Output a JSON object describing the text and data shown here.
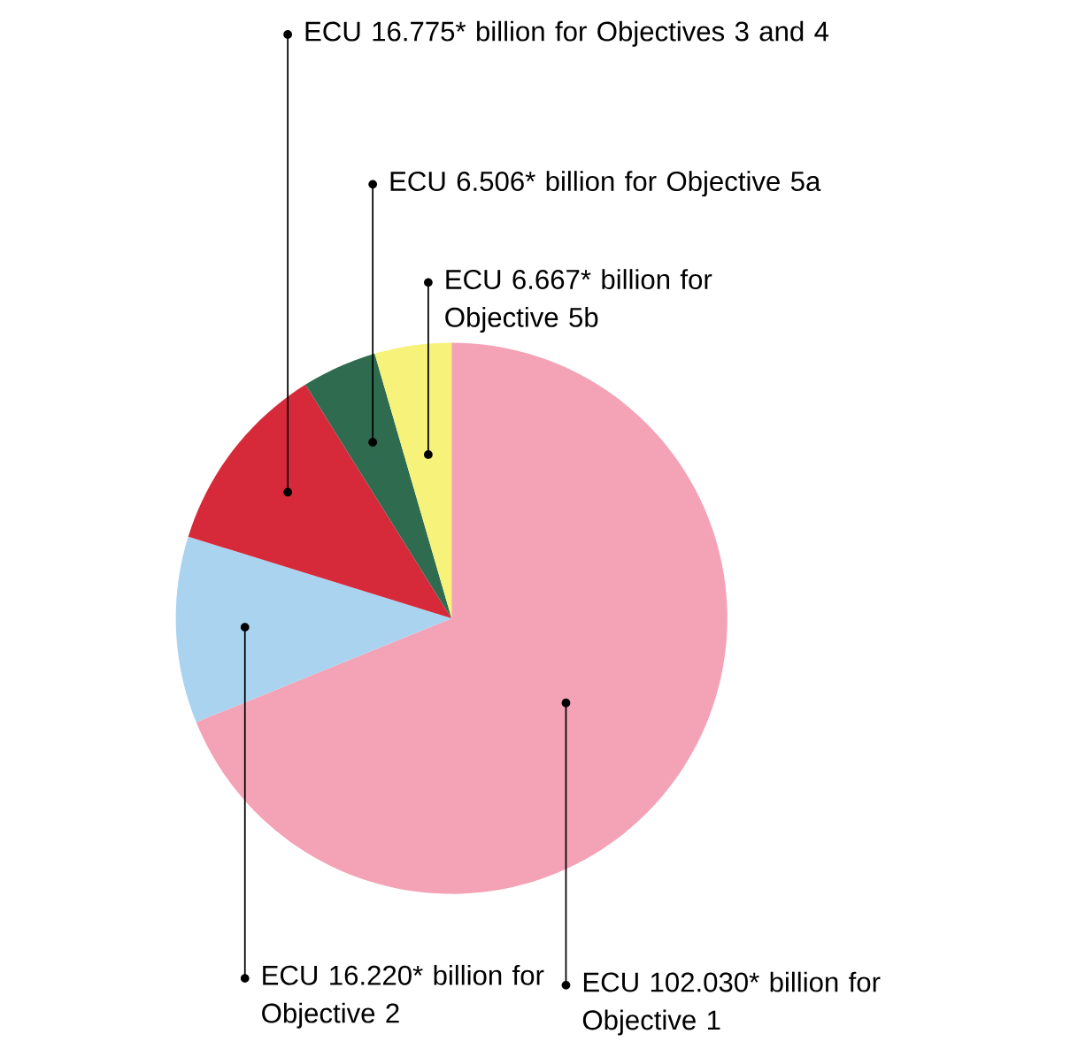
{
  "chart_data": {
    "type": "pie",
    "categories": [
      null,
      null,
      null,
      null,
      null
    ],
    "values": [
      102.03,
      16.22,
      16.775,
      6.506,
      6.667
    ],
    "colors": [
      "#f4a3b6",
      "#a9d3ef",
      "#d62a3b",
      "#2f6b4f",
      "#f7f27a"
    ],
    "value_labels": [
      "ECU 102.030* billion for Objective 1",
      "ECU 16.220* billion for Objective 2",
      "ECU 16.775* billion for Objectives 3 and 4",
      "ECU 6.506* billion for Objective 5a",
      "ECU 6.667* billion for Objective 5b"
    ]
  }
}
